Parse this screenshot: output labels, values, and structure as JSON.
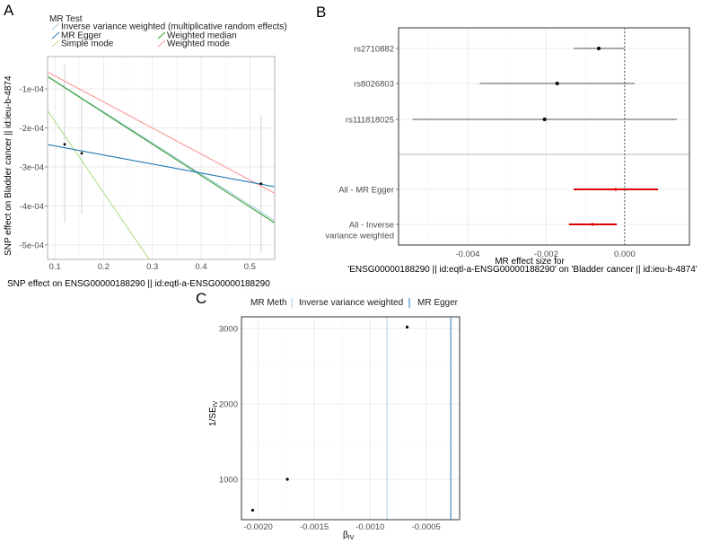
{
  "panels": {
    "a": "A",
    "b": "B",
    "c": "C"
  },
  "colors": {
    "ivw": "#A6CEE3",
    "egger": "#1F78B4",
    "simple_mode": "#B2DF8A",
    "weighted_median": "#33A02C",
    "weighted_mode": "#FB9A99",
    "forest_snp": "#000000",
    "forest_summary": "#E00000",
    "grid": "#ebebeb"
  },
  "chart_data": [
    {
      "type": "scatter",
      "panel": "A",
      "legend_title": "MR Test",
      "legend_placement": "top",
      "legend": [
        {
          "key": "ivw",
          "label": "Inverse variance weighted (multiplicative random effects)"
        },
        {
          "key": "egger",
          "label": "MR Egger"
        },
        {
          "key": "weighted_median",
          "label": "Weighted median"
        },
        {
          "key": "simple_mode",
          "label": "Simple mode"
        },
        {
          "key": "weighted_mode",
          "label": "Weighted mode"
        }
      ],
      "xlabel": "SNP effect on ENSG00000188290 || id:eqtl-a-ENSG00000188290",
      "ylabel": "SNP effect on Bladder cancer || id:ieu-b-4874",
      "xlim": [
        0.085,
        0.551
      ],
      "ylim": [
        -0.000537,
        -1.7e-05
      ],
      "grid": true,
      "xticks": [
        {
          "v": 0.1,
          "label": "0.1"
        },
        {
          "v": 0.2,
          "label": "0.2"
        },
        {
          "v": 0.3,
          "label": "0.3"
        },
        {
          "v": 0.4,
          "label": "0.4"
        },
        {
          "v": 0.5,
          "label": "0.5"
        }
      ],
      "yticks": [
        {
          "v": -0.0001,
          "label": "-1e-04"
        },
        {
          "v": -0.0002,
          "label": "-2e-04"
        },
        {
          "v": -0.0003,
          "label": "-3e-04"
        },
        {
          "v": -0.0004,
          "label": "-4e-04"
        },
        {
          "v": -0.0005,
          "label": "-5e-04"
        }
      ],
      "points": [
        {
          "x": 0.12,
          "y": -0.000242,
          "ylo": -3.8e-05,
          "yhi": -0.000443
        },
        {
          "x": 0.155,
          "y": -0.000265,
          "ylo": -0.000125,
          "yhi": -0.00042
        },
        {
          "x": 0.523,
          "y": -0.000343,
          "ylo": -0.000167,
          "yhi": -0.00052
        }
      ],
      "lines": [
        {
          "key": "weighted_mode",
          "intercept": 0,
          "slope": -0.000667
        },
        {
          "key": "ivw",
          "intercept": 0,
          "slope": -0.000795
        },
        {
          "key": "weighted_median",
          "intercept": 0,
          "slope": -0.000805
        },
        {
          "key": "simple_mode",
          "intercept": 0,
          "slope": -0.00183
        },
        {
          "key": "egger",
          "intercept": -0.000223,
          "slope": -0.000232
        }
      ]
    },
    {
      "type": "forest",
      "panel": "B",
      "xlabel_line1": "MR effect size for",
      "xlabel_line2": "'ENSG00000188290 || id:eqtl-a-ENSG00000188290' on 'Bladder cancer || id:ieu-b-4874'",
      "xlim": [
        -0.00576,
        0.00165
      ],
      "grid": true,
      "reference_line": 0,
      "xticks": [
        {
          "v": -0.004,
          "label": "-0.004"
        },
        {
          "v": -0.002,
          "label": "-0.002"
        },
        {
          "v": 0,
          "label": "0.000"
        }
      ],
      "rows": [
        {
          "label": [
            "rs2710882"
          ],
          "b": -0.00066,
          "lo": -0.0013,
          "hi": 0.0,
          "summary": false
        },
        {
          "label": [
            "rs8026803"
          ],
          "b": -0.00172,
          "lo": -0.00369,
          "hi": 0.00025,
          "summary": false
        },
        {
          "label": [
            "rs111818025"
          ],
          "b": -0.00204,
          "lo": -0.0054,
          "hi": 0.00133,
          "summary": false
        },
        {
          "label": [
            ""
          ],
          "separator": true
        },
        {
          "label": [
            "All - MR Egger"
          ],
          "b": -0.00023,
          "lo": -0.0013,
          "hi": 0.00085,
          "summary": true
        },
        {
          "label": [
            "All - Inverse",
            "variance weighted"
          ],
          "b": -0.00082,
          "lo": -0.00142,
          "hi": -0.0002,
          "summary": true
        }
      ]
    },
    {
      "type": "scatter",
      "panel": "C",
      "legend_title": "MR Meth",
      "legend_placement": "top",
      "legend": [
        {
          "key": "ivw",
          "label": "Inverse variance weighted"
        },
        {
          "key": "egger",
          "label": "MR Egger"
        }
      ],
      "xlabel": "βIV",
      "xlabel_main": "β",
      "xlabel_sub": "IV",
      "ylabel_main": "1/SE",
      "ylabel_sub": "IV",
      "xlim": [
        -0.00215,
        -0.000201
      ],
      "ylim": [
        464,
        3155
      ],
      "grid": true,
      "xticks": [
        {
          "v": -0.002,
          "label": "-0.0020"
        },
        {
          "v": -0.0015,
          "label": "-0.0015"
        },
        {
          "v": -0.001,
          "label": "-0.0010"
        },
        {
          "v": -0.0005,
          "label": "-0.0005"
        }
      ],
      "yticks": [
        {
          "v": 1000,
          "label": "1000"
        },
        {
          "v": 2000,
          "label": "2000"
        },
        {
          "v": 3000,
          "label": "3000"
        }
      ],
      "points": [
        {
          "x": -0.00205,
          "y": 590
        },
        {
          "x": -0.00174,
          "y": 1000
        },
        {
          "x": -0.00067,
          "y": 3020
        }
      ],
      "vlines": [
        {
          "key": "ivw",
          "x": -0.00085
        },
        {
          "key": "egger",
          "x": -0.00028
        }
      ]
    }
  ]
}
